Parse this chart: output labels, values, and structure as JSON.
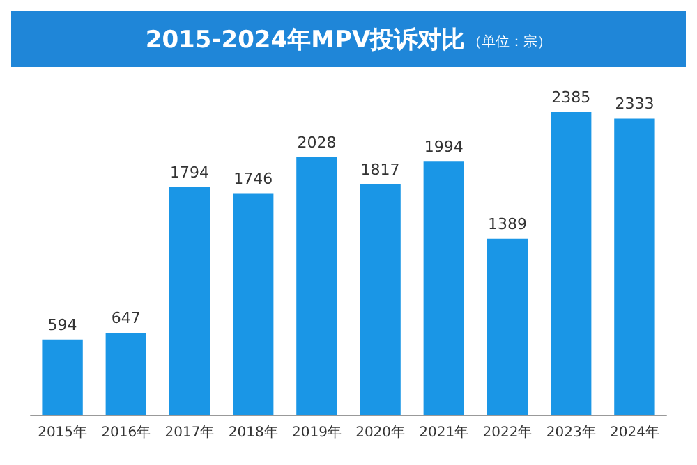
{
  "chart_data": {
    "type": "bar",
    "title": "2015-2024年MPV投诉对比",
    "subtitle": "（单位：宗）",
    "categories": [
      "2015年",
      "2016年",
      "2017年",
      "2018年",
      "2019年",
      "2020年",
      "2021年",
      "2022年",
      "2023年",
      "2024年"
    ],
    "values": [
      594,
      647,
      1794,
      1746,
      2028,
      1817,
      1994,
      1389,
      2385,
      2333
    ],
    "color": "#1a96e6",
    "data_labels": true,
    "tick_labels": "x"
  }
}
